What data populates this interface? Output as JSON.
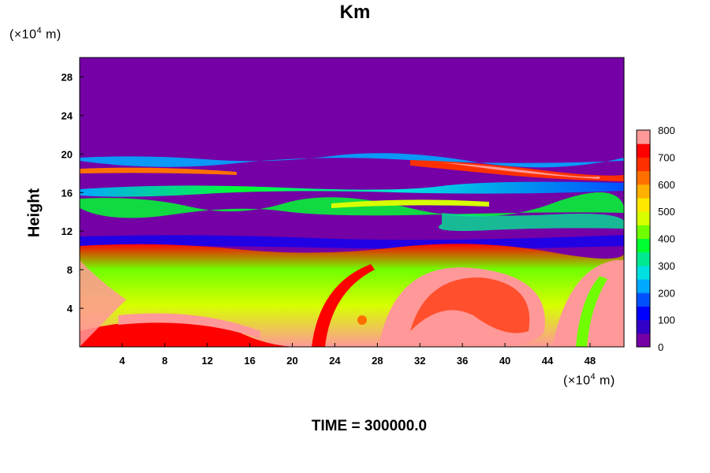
{
  "chart_data": {
    "type": "heatmap",
    "title": "Km",
    "ylabel": "Height",
    "x_unit": {
      "prefix": "(×10",
      "exp": "4",
      "suffix": " m)"
    },
    "y_unit": {
      "prefix": "(×10",
      "exp": "4",
      "suffix": " m)"
    },
    "x_ticks": [
      4,
      8,
      12,
      16,
      20,
      24,
      28,
      32,
      36,
      40,
      44,
      48
    ],
    "y_ticks": [
      4,
      8,
      12,
      16,
      20,
      24,
      28
    ],
    "xlim": [
      0,
      51.2
    ],
    "ylim": [
      0,
      30
    ],
    "colorbar": {
      "ticks": [
        0,
        100,
        200,
        300,
        400,
        500,
        600,
        700,
        800
      ],
      "range": [
        0,
        800
      ],
      "colors": [
        "#7400a6",
        "#3300c8",
        "#0000ff",
        "#0050ff",
        "#00a8ff",
        "#00e0e0",
        "#00e890",
        "#00ff30",
        "#70ff00",
        "#d8ff00",
        "#ffe800",
        "#ffb000",
        "#ff7000",
        "#ff3000",
        "#ff0000",
        "#ff9898"
      ]
    },
    "grid": false,
    "legend": "right"
  },
  "footer": {
    "time_label": "TIME = 300000.0"
  }
}
